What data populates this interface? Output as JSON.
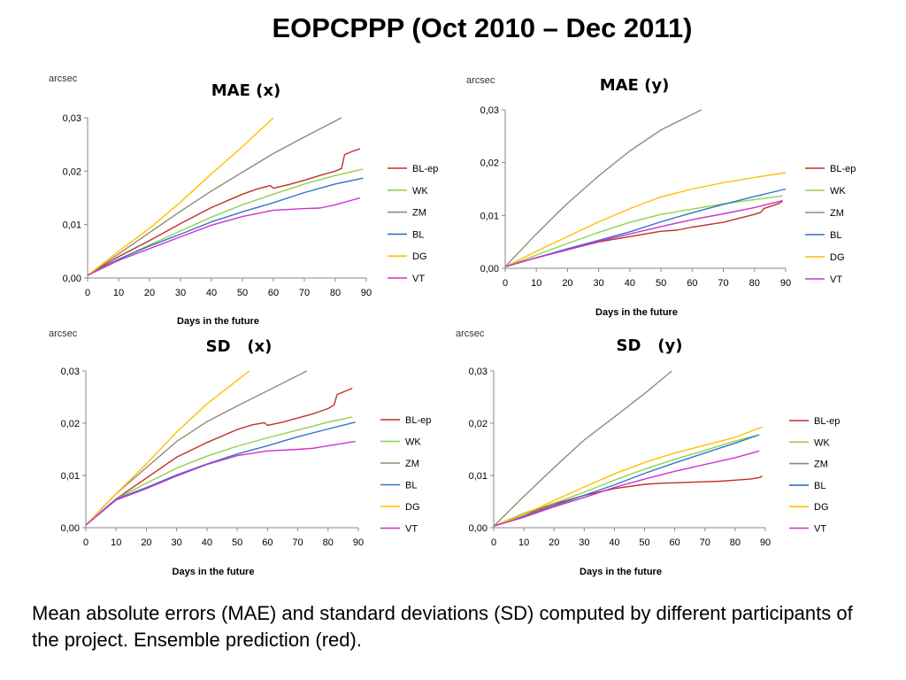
{
  "slide": {
    "title": "EOPCPPP (Oct 2010 – Dec 2011)",
    "caption": "Mean absolute errors (MAE) and standard deviations (SD) computed by different participants of the project. Ensemble prediction (red)."
  },
  "series_colors": {
    "BL-ep": "#c0302a",
    "WK": "#92d050",
    "ZM": "#948a76",
    "BL": "#2e75c5",
    "DG": "#ffc000",
    "VT": "#cc33cc"
  },
  "chart_data": [
    {
      "type": "line",
      "title": "MAE (x)",
      "ylabel": "arcsec",
      "xlabel": "Days in the future",
      "xlim": [
        0,
        90
      ],
      "ylim": [
        0,
        0.03
      ],
      "xticks": [
        "0",
        "10",
        "20",
        "30",
        "40",
        "50",
        "60",
        "70",
        "80",
        "90"
      ],
      "yticks": [
        "0,00",
        "0,01",
        "0,02",
        "0,03"
      ],
      "legend": "right",
      "series": [
        {
          "name": "BL-ep",
          "x": [
            0,
            10,
            20,
            30,
            40,
            50,
            55,
            59,
            60,
            65,
            70,
            75,
            80,
            82,
            83,
            85,
            88
          ],
          "y": [
            0.0005,
            0.004,
            0.007,
            0.0102,
            0.0132,
            0.0157,
            0.0167,
            0.0173,
            0.0168,
            0.0175,
            0.0183,
            0.0192,
            0.02,
            0.0205,
            0.0231,
            0.0236,
            0.0242
          ]
        },
        {
          "name": "WK",
          "x": [
            0,
            10,
            20,
            30,
            40,
            50,
            60,
            70,
            80,
            89
          ],
          "y": [
            0.0005,
            0.0035,
            0.0062,
            0.0088,
            0.0114,
            0.0137,
            0.0157,
            0.0176,
            0.0192,
            0.0204
          ]
        },
        {
          "name": "ZM",
          "x": [
            0,
            10,
            20,
            30,
            40,
            50,
            60,
            70,
            82
          ],
          "y": [
            0.0005,
            0.0045,
            0.0085,
            0.0125,
            0.0163,
            0.0198,
            0.0233,
            0.0264,
            0.03
          ]
        },
        {
          "name": "BL",
          "x": [
            0,
            10,
            20,
            30,
            40,
            50,
            60,
            70,
            80,
            89
          ],
          "y": [
            0.0005,
            0.0035,
            0.006,
            0.0082,
            0.0105,
            0.0124,
            0.0141,
            0.016,
            0.0176,
            0.0187
          ]
        },
        {
          "name": "DG",
          "x": [
            0,
            10,
            20,
            30,
            40,
            50,
            60
          ],
          "y": [
            0.0005,
            0.005,
            0.0093,
            0.0142,
            0.0195,
            0.0246,
            0.03
          ]
        },
        {
          "name": "VT",
          "x": [
            0,
            10,
            20,
            30,
            40,
            50,
            60,
            70,
            75,
            80,
            88
          ],
          "y": [
            0.0005,
            0.0033,
            0.0055,
            0.0077,
            0.0099,
            0.0115,
            0.0127,
            0.013,
            0.0131,
            0.0137,
            0.015
          ]
        }
      ]
    },
    {
      "type": "line",
      "title": "MAE (y)",
      "ylabel": "arcsec",
      "xlabel": "Days in the future",
      "xlim": [
        0,
        90
      ],
      "ylim": [
        0,
        0.03
      ],
      "xticks": [
        "0",
        "10",
        "20",
        "30",
        "40",
        "50",
        "60",
        "70",
        "80",
        "90"
      ],
      "yticks": [
        "0,00",
        "0,01",
        "0,02",
        "0,03"
      ],
      "legend": "right",
      "series": [
        {
          "name": "BL-ep",
          "x": [
            0,
            10,
            20,
            30,
            40,
            50,
            55,
            60,
            70,
            80,
            82,
            83,
            88,
            89
          ],
          "y": [
            0.0003,
            0.002,
            0.0035,
            0.005,
            0.006,
            0.007,
            0.0072,
            0.0078,
            0.0087,
            0.0102,
            0.0106,
            0.0113,
            0.0123,
            0.0127
          ]
        },
        {
          "name": "WK",
          "x": [
            0,
            10,
            20,
            30,
            40,
            50,
            60,
            70,
            80,
            89
          ],
          "y": [
            0.0003,
            0.0025,
            0.0047,
            0.0068,
            0.0087,
            0.0102,
            0.0112,
            0.0122,
            0.013,
            0.0137
          ]
        },
        {
          "name": "ZM",
          "x": [
            0,
            10,
            20,
            30,
            40,
            50,
            63
          ],
          "y": [
            0.0003,
            0.0065,
            0.0123,
            0.0175,
            0.0222,
            0.0262,
            0.03
          ]
        },
        {
          "name": "BL",
          "x": [
            0,
            10,
            20,
            30,
            40,
            50,
            60,
            70,
            80,
            90
          ],
          "y": [
            0.0003,
            0.002,
            0.0037,
            0.0053,
            0.0069,
            0.0088,
            0.0105,
            0.0121,
            0.0136,
            0.015
          ]
        },
        {
          "name": "DG",
          "x": [
            0,
            10,
            20,
            30,
            40,
            50,
            60,
            70,
            80,
            90
          ],
          "y": [
            0.0003,
            0.0032,
            0.006,
            0.0088,
            0.0113,
            0.0135,
            0.015,
            0.0162,
            0.0172,
            0.0181
          ]
        },
        {
          "name": "VT",
          "x": [
            0,
            10,
            20,
            30,
            40,
            50,
            60,
            70,
            80,
            89
          ],
          "y": [
            0.0003,
            0.002,
            0.0035,
            0.0051,
            0.0065,
            0.0079,
            0.0092,
            0.0103,
            0.0115,
            0.0128
          ]
        }
      ]
    },
    {
      "type": "line",
      "title": "SD   (x)",
      "ylabel": "arcsec",
      "xlabel": "Days in the future",
      "xlim": [
        0,
        90
      ],
      "ylim": [
        0,
        0.03
      ],
      "xticks": [
        "0",
        "10",
        "20",
        "30",
        "40",
        "50",
        "60",
        "70",
        "80",
        "90"
      ],
      "yticks": [
        "0,00",
        "0,01",
        "0,02",
        "0,03"
      ],
      "legend": "right",
      "series": [
        {
          "name": "BL-ep",
          "x": [
            0,
            10,
            20,
            30,
            40,
            50,
            55,
            59,
            60,
            65,
            70,
            75,
            80,
            82,
            83,
            88
          ],
          "y": [
            0.0005,
            0.0055,
            0.0095,
            0.0135,
            0.0163,
            0.0188,
            0.0197,
            0.0201,
            0.0196,
            0.0202,
            0.021,
            0.0218,
            0.0228,
            0.0235,
            0.0255,
            0.0267
          ]
        },
        {
          "name": "WK",
          "x": [
            0,
            10,
            20,
            30,
            40,
            50,
            60,
            70,
            80,
            88
          ],
          "y": [
            0.0005,
            0.0055,
            0.0085,
            0.0114,
            0.0137,
            0.0156,
            0.0172,
            0.0187,
            0.0202,
            0.0212
          ]
        },
        {
          "name": "ZM",
          "x": [
            0,
            10,
            20,
            30,
            40,
            50,
            60,
            73
          ],
          "y": [
            0.0005,
            0.0065,
            0.0115,
            0.0165,
            0.0203,
            0.0233,
            0.0262,
            0.03
          ]
        },
        {
          "name": "BL",
          "x": [
            0,
            10,
            20,
            30,
            40,
            50,
            60,
            70,
            80,
            89
          ],
          "y": [
            0.0005,
            0.0055,
            0.0077,
            0.0101,
            0.0122,
            0.0141,
            0.0157,
            0.0174,
            0.0189,
            0.0202
          ]
        },
        {
          "name": "DG",
          "x": [
            0,
            10,
            20,
            30,
            40,
            50,
            54
          ],
          "y": [
            0.0005,
            0.0065,
            0.0122,
            0.0183,
            0.0237,
            0.0282,
            0.03
          ]
        },
        {
          "name": "VT",
          "x": [
            0,
            10,
            20,
            30,
            40,
            50,
            60,
            70,
            75,
            80,
            89
          ],
          "y": [
            0.0005,
            0.0053,
            0.0075,
            0.0099,
            0.0121,
            0.0138,
            0.0147,
            0.015,
            0.0152,
            0.0157,
            0.0165
          ]
        }
      ]
    },
    {
      "type": "line",
      "title": "SD   (y)",
      "ylabel": "arcsec",
      "xlabel": "Days in the future",
      "xlim": [
        0,
        90
      ],
      "ylim": [
        0,
        0.03
      ],
      "xticks": [
        "0",
        "10",
        "20",
        "30",
        "40",
        "50",
        "60",
        "70",
        "80",
        "90"
      ],
      "yticks": [
        "0,00",
        "0,01",
        "0,02",
        "0,03"
      ],
      "legend": "right",
      "series": [
        {
          "name": "BL-ep",
          "x": [
            0,
            10,
            20,
            30,
            40,
            50,
            55,
            60,
            70,
            75,
            80,
            85,
            88,
            89
          ],
          "y": [
            0.0003,
            0.0025,
            0.0045,
            0.0062,
            0.0075,
            0.0083,
            0.0085,
            0.0086,
            0.0088,
            0.0089,
            0.0091,
            0.0093,
            0.0096,
            0.0099
          ]
        },
        {
          "name": "WK",
          "x": [
            0,
            10,
            20,
            30,
            40,
            50,
            60,
            70,
            80,
            88
          ],
          "y": [
            0.0003,
            0.0028,
            0.0047,
            0.0068,
            0.0091,
            0.0112,
            0.0131,
            0.0148,
            0.0166,
            0.0178
          ]
        },
        {
          "name": "ZM",
          "x": [
            0,
            10,
            20,
            30,
            40,
            50,
            59
          ],
          "y": [
            0.0003,
            0.006,
            0.0115,
            0.0168,
            0.0212,
            0.0257,
            0.03
          ]
        },
        {
          "name": "BL",
          "x": [
            0,
            10,
            20,
            30,
            40,
            50,
            60,
            70,
            80,
            88
          ],
          "y": [
            0.0003,
            0.0022,
            0.0042,
            0.0062,
            0.0082,
            0.0104,
            0.0124,
            0.0143,
            0.0162,
            0.0178
          ]
        },
        {
          "name": "DG",
          "x": [
            0,
            10,
            20,
            30,
            40,
            50,
            60,
            70,
            80,
            89
          ],
          "y": [
            0.0003,
            0.0025,
            0.0052,
            0.0078,
            0.0103,
            0.0125,
            0.0143,
            0.0158,
            0.0173,
            0.0193
          ]
        },
        {
          "name": "VT",
          "x": [
            0,
            10,
            20,
            30,
            40,
            50,
            60,
            70,
            80,
            88
          ],
          "y": [
            0.0003,
            0.002,
            0.004,
            0.0058,
            0.0077,
            0.0093,
            0.0108,
            0.0121,
            0.0134,
            0.0147
          ]
        }
      ]
    }
  ]
}
